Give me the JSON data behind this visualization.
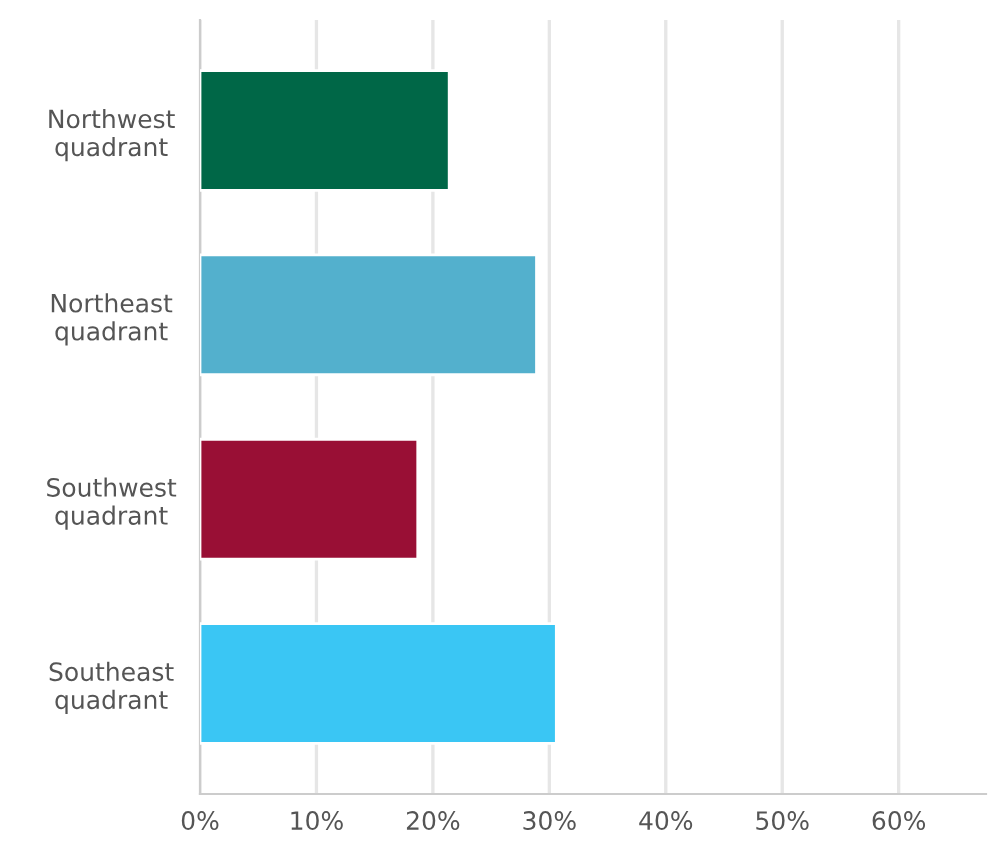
{
  "chart_data": {
    "type": "bar",
    "orientation": "horizontal",
    "categories": [
      "Northwest\nquadrant",
      "Northeast\nquadrant",
      "Southwest\nquadrant",
      "Southeast\nquadrant"
    ],
    "values": [
      21.4,
      28.9,
      18.7,
      30.6
    ],
    "colors": [
      "#006747",
      "#53b0cd",
      "#990f35",
      "#3ac6f4"
    ],
    "xlim": [
      0,
      67.5
    ],
    "xticks": [
      {
        "value": 0,
        "label": "0%"
      },
      {
        "value": 10,
        "label": "10%"
      },
      {
        "value": 20,
        "label": "20%"
      },
      {
        "value": 30,
        "label": "30%"
      },
      {
        "value": 40,
        "label": "40%"
      },
      {
        "value": 50,
        "label": "50%"
      },
      {
        "value": 60,
        "label": "60%"
      }
    ],
    "grid": "x"
  }
}
